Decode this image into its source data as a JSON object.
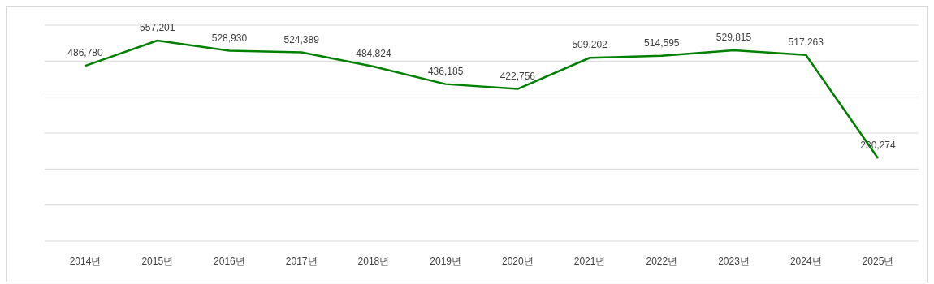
{
  "chart_data": {
    "type": "line",
    "categories": [
      "2014년",
      "2015년",
      "2016년",
      "2017년",
      "2018년",
      "2019년",
      "2020년",
      "2021년",
      "2022년",
      "2023년",
      "2024년",
      "2025년"
    ],
    "series": [
      {
        "color": "#008000",
        "values": [
          486780,
          557201,
          528930,
          524389,
          484824,
          436185,
          422756,
          509202,
          514595,
          529815,
          517263,
          230274
        ],
        "value_labels": [
          "486,780",
          "557,201",
          "528,930",
          "524,389",
          "484,824",
          "436,185",
          "422,756",
          "509,202",
          "514,595",
          "529,815",
          "517,263",
          "230,274"
        ]
      }
    ],
    "ylim": [
      0,
      600000
    ],
    "yticks": [
      {
        "value": 0,
        "label": null
      },
      {
        "value": 100000,
        "label": null
      },
      {
        "value": 200000,
        "label": null
      },
      {
        "value": 300000,
        "label": null
      },
      {
        "value": 400000,
        "label": null
      },
      {
        "value": 500000,
        "label": null
      },
      {
        "value": 600000,
        "label": null
      }
    ],
    "grid": "y",
    "marker": "none",
    "line_style": "solid"
  }
}
